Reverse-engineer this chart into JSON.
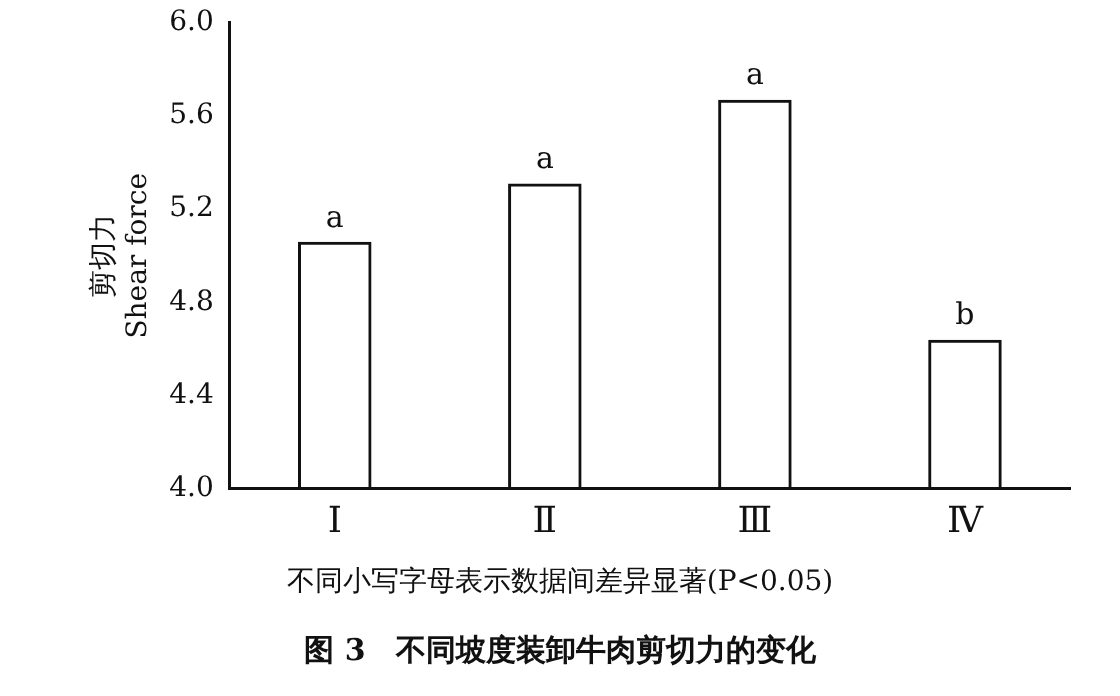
{
  "chart_data": {
    "type": "bar",
    "title": "图 3　不同坡度装卸牛肉剪切力的变化",
    "ylabel": "剪切力\nShear force",
    "categories": [
      "Ⅰ",
      "Ⅱ",
      "Ⅲ",
      "Ⅳ"
    ],
    "values": [
      5.06,
      5.31,
      5.67,
      4.64
    ],
    "color": "#111111",
    "ylim": [
      4.0,
      6.0
    ],
    "yticks": [
      {
        "value": 4,
        "label": "4.0"
      },
      {
        "value": 4.4,
        "label": "4.4"
      },
      {
        "value": 4.8,
        "label": "4.8"
      },
      {
        "value": 5.2,
        "label": "5.2"
      },
      {
        "value": 5.6,
        "label": "5.6"
      },
      {
        "value": 6,
        "label": "6.0"
      }
    ],
    "grid": false,
    "legend": false,
    "annotations": [
      {
        "text": "a",
        "x": "Ⅰ",
        "y": 5.06
      },
      {
        "text": "a",
        "x": "Ⅱ",
        "y": 5.31
      },
      {
        "text": "a",
        "x": "Ⅲ",
        "y": 5.67
      },
      {
        "text": "b",
        "x": "Ⅳ",
        "y": 4.64
      },
      "不同小写字母表示数据间差异显著(P<0.05)"
    ]
  }
}
